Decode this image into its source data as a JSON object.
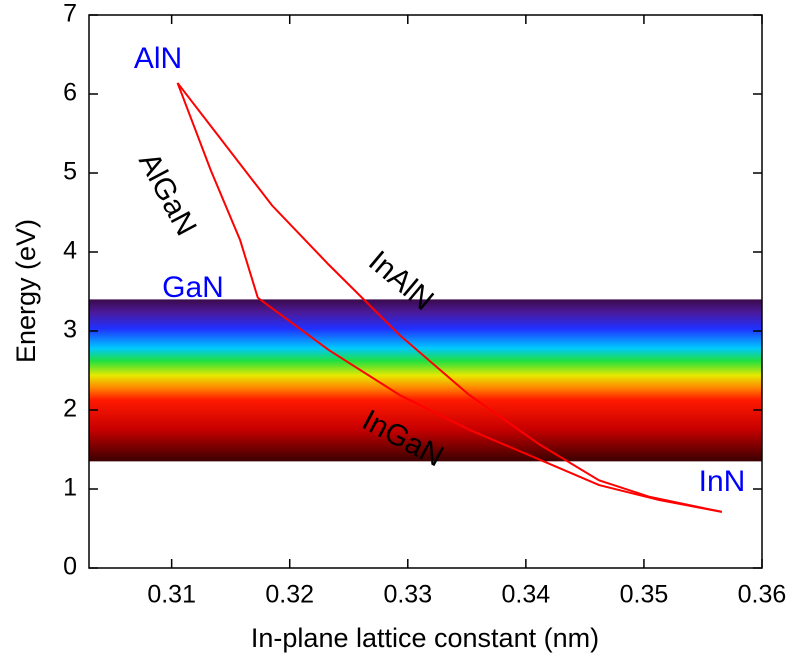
{
  "chart_data": {
    "type": "line",
    "x_label": "In-plane lattice constant (nm)",
    "y_label": "Energy (eV)",
    "xlim": [
      0.303,
      0.36
    ],
    "ylim": [
      0,
      7
    ],
    "xticks": [
      0.31,
      0.32,
      0.33,
      0.34,
      0.35,
      0.36
    ],
    "yticks": [
      0,
      1,
      2,
      3,
      4,
      5,
      6,
      7
    ],
    "band": {
      "ylim": [
        1.35,
        3.4
      ]
    },
    "series": [
      {
        "name": "AlGaN",
        "color": "#ff0000",
        "x": [
          0.3105,
          0.3133,
          0.3158,
          0.3173
        ],
        "values": [
          6.14,
          5.04,
          4.15,
          3.42
        ]
      },
      {
        "name": "InAlN",
        "color": "#ff0000",
        "x": [
          0.3105,
          0.3185,
          0.3233,
          0.3293,
          0.3352,
          0.3412,
          0.3462,
          0.3505,
          0.3566
        ],
        "values": [
          6.14,
          4.59,
          3.84,
          2.95,
          2.19,
          1.56,
          1.11,
          0.9,
          0.71
        ]
      },
      {
        "name": "InGaN",
        "color": "#ff0000",
        "x": [
          0.3173,
          0.3233,
          0.3293,
          0.3352,
          0.3412,
          0.3462,
          0.3513,
          0.3566
        ],
        "values": [
          3.42,
          2.76,
          2.19,
          1.75,
          1.37,
          1.05,
          0.86,
          0.71
        ]
      }
    ],
    "annotations": [
      {
        "text": "AlN",
        "color": "#0000ff"
      },
      {
        "text": "GaN",
        "color": "#0000ff"
      },
      {
        "text": "InN",
        "color": "#0000ff"
      }
    ]
  }
}
